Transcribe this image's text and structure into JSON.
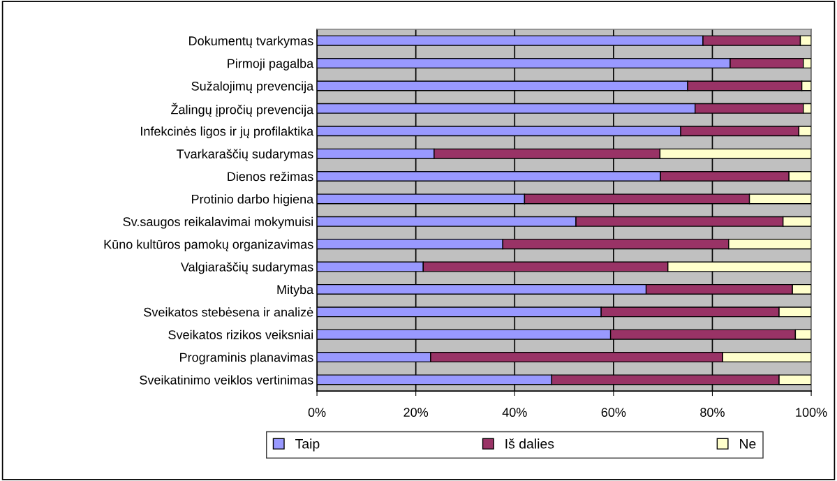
{
  "chart_data": {
    "type": "bar",
    "orientation": "horizontal",
    "stacked": true,
    "categories": [
      "Dokumentų tvarkymas",
      "Pirmoji pagalba",
      "Sužalojimų prevencija",
      "Žalingų įpročių prevencija",
      "Infekcinės ligos ir jų profilaktika",
      "Tvarkaraščių sudarymas",
      "Dienos režimas",
      "Protinio darbo higiena",
      "Sv.saugos reikalavimai mokymuisi",
      "Kūno kultūros pamokų organizavimas",
      "Valgiaraščių sudarymas",
      "Mityba",
      "Sveikatos stebėsena ir analizė",
      "Sveikatos rizikos veiksniai",
      "Programinis planavimas",
      "Sveikatinimo veiklos vertinimas"
    ],
    "series": [
      {
        "name": "Taip",
        "color": "#9999ff",
        "values": [
          78.1,
          83.6,
          75.0,
          76.5,
          73.6,
          23.7,
          69.5,
          42.0,
          52.4,
          37.6,
          21.5,
          66.6,
          57.5,
          59.4,
          23.0,
          47.5
        ]
      },
      {
        "name": "Iš dalies",
        "color": "#993366",
        "values": [
          19.7,
          14.8,
          23.1,
          21.9,
          23.9,
          45.7,
          26.0,
          45.5,
          41.9,
          45.7,
          49.5,
          29.6,
          36.0,
          37.4,
          59.1,
          46.0
        ]
      },
      {
        "name": "Ne",
        "color": "#ffffcc",
        "values": [
          2.2,
          1.6,
          1.9,
          1.6,
          2.5,
          30.6,
          4.5,
          12.5,
          5.7,
          16.7,
          29.0,
          3.8,
          6.5,
          3.2,
          17.9,
          6.5
        ]
      }
    ],
    "xlim": [
      0,
      100
    ],
    "xticks": [
      {
        "value": 0,
        "label": "0%"
      },
      {
        "value": 20,
        "label": "20%"
      },
      {
        "value": 40,
        "label": "40%"
      },
      {
        "value": 60,
        "label": "60%"
      },
      {
        "value": 80,
        "label": "80%"
      },
      {
        "value": 100,
        "label": "100%"
      }
    ],
    "grid": "x",
    "legend": "bottom"
  }
}
